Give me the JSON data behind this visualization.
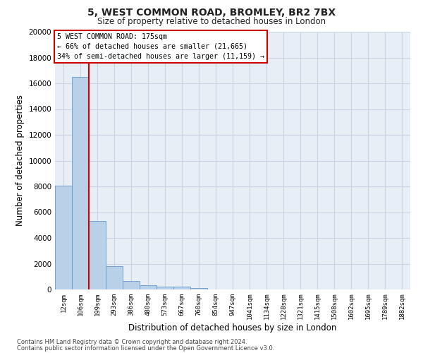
{
  "title_line1": "5, WEST COMMON ROAD, BROMLEY, BR2 7BX",
  "title_line2": "Size of property relative to detached houses in London",
  "xlabel": "Distribution of detached houses by size in London",
  "ylabel": "Number of detached properties",
  "bar_color": "#b8d0e8",
  "bar_edge_color": "#6699cc",
  "grid_color": "#c8d4e4",
  "background_color": "#e8eef6",
  "vline_color": "#cc0000",
  "annotation_box_text_line1": "5 WEST COMMON ROAD: 175sqm",
  "annotation_box_text_line2": "← 66% of detached houses are smaller (21,665)",
  "annotation_box_text_line3": "34% of semi-detached houses are larger (11,159) →",
  "categories": [
    "12sqm",
    "106sqm",
    "199sqm",
    "293sqm",
    "386sqm",
    "480sqm",
    "573sqm",
    "667sqm",
    "760sqm",
    "854sqm",
    "947sqm",
    "1041sqm",
    "1134sqm",
    "1228sqm",
    "1321sqm",
    "1415sqm",
    "1508sqm",
    "1602sqm",
    "1695sqm",
    "1789sqm",
    "1882sqm"
  ],
  "bar_heights": [
    8050,
    16500,
    5300,
    1800,
    650,
    310,
    210,
    200,
    120,
    0,
    0,
    0,
    0,
    0,
    0,
    0,
    0,
    0,
    0,
    0,
    0
  ],
  "ylim": [
    0,
    20000
  ],
  "yticks": [
    0,
    2000,
    4000,
    6000,
    8000,
    10000,
    12000,
    14000,
    16000,
    18000,
    20000
  ],
  "footer_line1": "Contains HM Land Registry data © Crown copyright and database right 2024.",
  "footer_line2": "Contains public sector information licensed under the Open Government Licence v3.0."
}
